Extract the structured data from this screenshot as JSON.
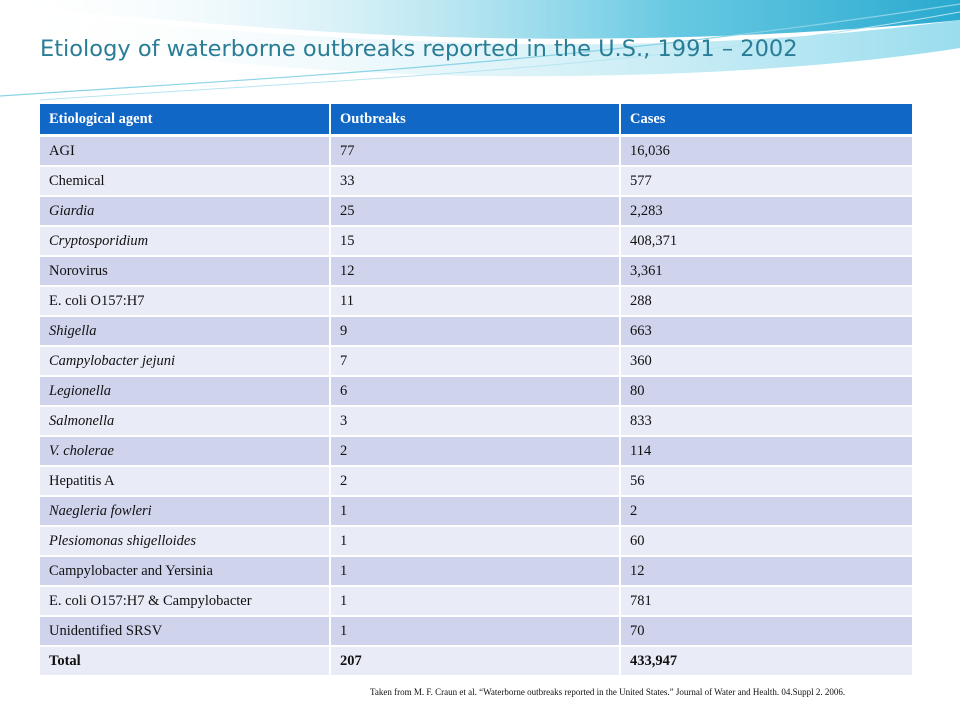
{
  "slide": {
    "title": "Etiology of waterborne outbreaks reported in the U.S., 1991 – 2002"
  },
  "table": {
    "headers": [
      "Etiological agent",
      "Outbreaks",
      "Cases"
    ],
    "rows": [
      {
        "agent": "AGI",
        "agent_italic": false,
        "outbreaks": "77",
        "cases": "16,036"
      },
      {
        "agent": "Chemical",
        "agent_italic": false,
        "outbreaks": "33",
        "cases": "577"
      },
      {
        "agent": "Giardia",
        "agent_italic": true,
        "outbreaks": "25",
        "cases": "2,283"
      },
      {
        "agent": "Cryptosporidium",
        "agent_italic": true,
        "outbreaks": "15",
        "cases": "408,371"
      },
      {
        "agent": "Norovirus",
        "agent_italic": false,
        "outbreaks": "12",
        "cases": "3,361"
      },
      {
        "agent": "E. coli O157:H7",
        "agent_italic": false,
        "outbreaks": "11",
        "cases": "288"
      },
      {
        "agent": "Shigella",
        "agent_italic": true,
        "outbreaks": "9",
        "cases": "663"
      },
      {
        "agent": "Campylobacter jejuni",
        "agent_italic": true,
        "outbreaks": "7",
        "cases": "360"
      },
      {
        "agent": "Legionella",
        "agent_italic": true,
        "outbreaks": "6",
        "cases": "80"
      },
      {
        "agent": "Salmonella",
        "agent_italic": true,
        "outbreaks": "3",
        "cases": "833"
      },
      {
        "agent": "V. cholerae",
        "agent_italic": true,
        "outbreaks": "2",
        "cases": "114"
      },
      {
        "agent": "Hepatitis A",
        "agent_italic": false,
        "outbreaks": "2",
        "cases": "56"
      },
      {
        "agent": "Naegleria fowleri",
        "agent_italic": true,
        "outbreaks": "1",
        "cases": "2"
      },
      {
        "agent": "Plesiomonas shigelloides",
        "agent_italic": true,
        "outbreaks": "1",
        "cases": "60"
      },
      {
        "agent": "Campylobacter and Yersinia",
        "agent_italic": false,
        "outbreaks": "1",
        "cases": "12"
      },
      {
        "agent": "E. coli O157:H7 & Campylobacter",
        "agent_italic": false,
        "outbreaks": "1",
        "cases": "781"
      },
      {
        "agent": "Unidentified SRSV",
        "agent_italic": false,
        "outbreaks": "1",
        "cases": "70"
      }
    ],
    "total": {
      "label": "Total",
      "outbreaks": "207",
      "cases": "433,947"
    }
  },
  "source_note": "Taken from M. F. Craun et al. “Waterborne outbreaks reported in the United States.” Journal of Water and Health. 04.Suppl 2. 2006.",
  "colors": {
    "title": "#2a7d96",
    "header_bg": "#1167c6",
    "row_band_dark": "#cfd4ec",
    "row_band_light": "#e9ebf6",
    "swoosh": "#5bc8e0"
  }
}
